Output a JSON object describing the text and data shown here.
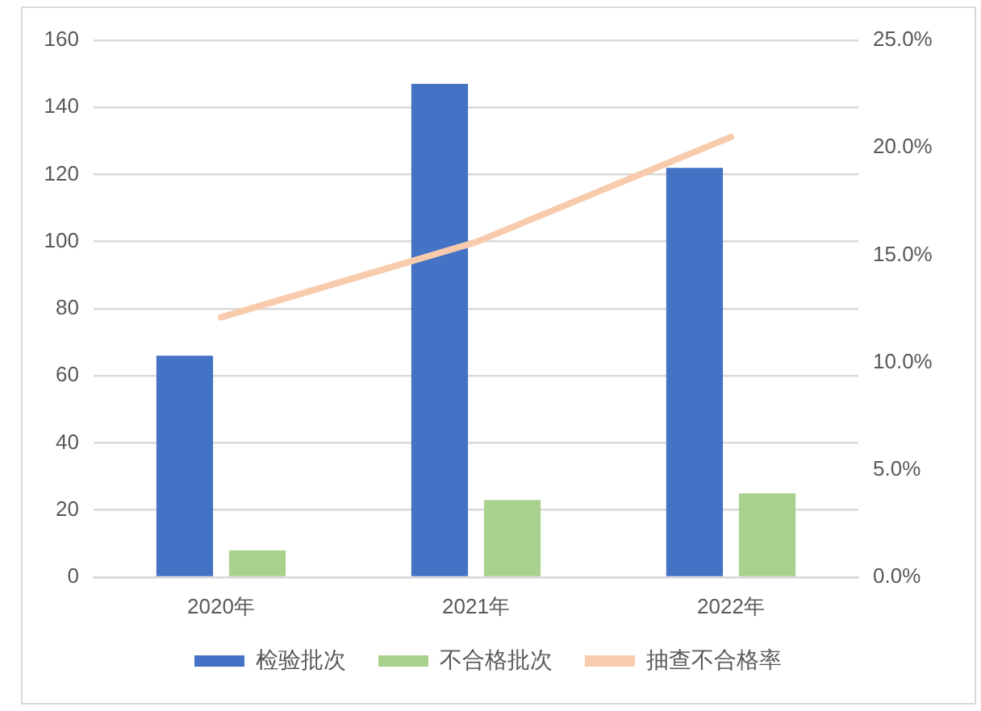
{
  "chart_data": {
    "type": "bar",
    "categories": [
      "2020年",
      "2021年",
      "2022年"
    ],
    "series": [
      {
        "name": "检验批次",
        "color": "#4472c4",
        "values": [
          66,
          147,
          122
        ]
      },
      {
        "name": "不合格批次",
        "color": "#a9d18e",
        "values": [
          8,
          23,
          25
        ]
      },
      {
        "name": "抽查不合格率",
        "type": "line",
        "axis": "y2",
        "color": "#f8cbad",
        "values": [
          12.1,
          15.6,
          20.5
        ]
      }
    ],
    "ylim": [
      0,
      160
    ],
    "yticks": [
      0,
      20,
      40,
      60,
      80,
      100,
      120,
      140,
      160
    ],
    "y2lim": [
      0,
      25
    ],
    "y2ticks": [
      {
        "value": 0,
        "label": "0.0%"
      },
      {
        "value": 5,
        "label": "5.0%"
      },
      {
        "value": 10,
        "label": "10.0%"
      },
      {
        "value": 15,
        "label": "15.0%"
      },
      {
        "value": 20,
        "label": "20.0%"
      },
      {
        "value": 25,
        "label": "25.0%"
      }
    ],
    "grid": "y",
    "legend": "bottom",
    "marker": "none"
  }
}
